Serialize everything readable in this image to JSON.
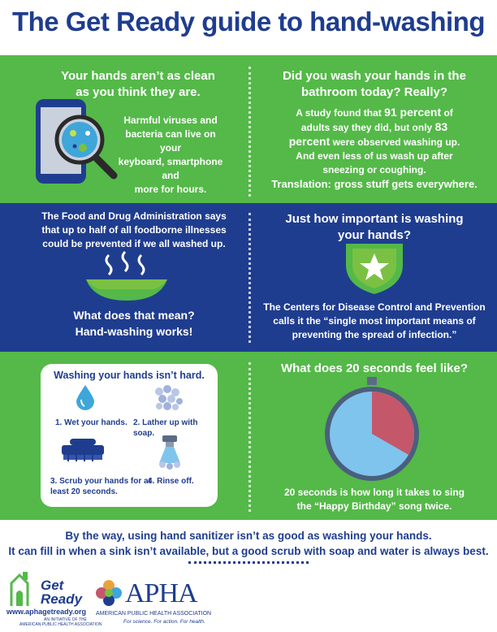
{
  "title": "The Get Ready guide to hand-washing",
  "colors": {
    "green": "#54b948",
    "navy": "#1f3d8f",
    "clock_red": "#c5576b",
    "clock_blue": "#7fc4ec"
  },
  "section1": {
    "heading_line1": "Your hands aren’t as clean",
    "heading_line2": "as you think they are.",
    "body_line1": "Harmful viruses and",
    "body_line2": "bacteria can live on your",
    "body_line3": "keyboard, smartphone and",
    "body_line4": "more for hours.",
    "icon": "phone-magnifier-germs-icon"
  },
  "section2": {
    "heading_line1": "Did you wash your hands in the",
    "heading_line2": "bathroom today? Really?",
    "body_line1_a": "A study found that ",
    "body_line1_b": "91 percent",
    "body_line1_c": " of",
    "body_line2_a": "adults say they did, but only ",
    "body_line2_b": "83",
    "body_line3_a": "percent",
    "body_line3_b": " were observed washing up.",
    "body_line4": "And even less of us wash up after",
    "body_line5": "sneezing or coughing.",
    "translation": "Translation: gross stuff gets everywhere."
  },
  "section3": {
    "body_line1": "The Food and Drug Administration says",
    "body_line2": "that up to half of all foodborne illnesses",
    "body_line3": "could be prevented if we all washed up.",
    "icon": "steaming-bowl-icon",
    "q_line1": "What does that mean?",
    "q_line2": "Hand-washing works!"
  },
  "section4": {
    "heading_line1": "Just how important is washing",
    "heading_line2": "your hands?",
    "icon": "shield-star-icon",
    "body_line1": "The Centers for Disease Control and Prevention",
    "body_line2": "calls it the “single most important means of",
    "body_line3": "preventing the spread of infection.”"
  },
  "steps": {
    "title": "Washing your hands isn’t hard.",
    "s1": "1. Wet your hands.",
    "s2": "2. Lather up with soap.",
    "s3_line1": "3. Scrub your hands for at",
    "s3_line2": "least 20 seconds.",
    "s4": "4. Rinse off.",
    "icons": [
      "water-drop-icon",
      "soap-bubbles-icon",
      "scrub-brush-icon",
      "faucet-icon"
    ]
  },
  "clock": {
    "heading": "What does 20 seconds feel like?",
    "seconds_fraction": 0.333,
    "caption_line1": "20 seconds is how long it takes to sing",
    "caption_line2": "the “Happy Birthday” song twice.",
    "icon": "stopwatch-icon"
  },
  "footer": {
    "line1": "By the way, using hand sanitizer isn’t as good as washing your hands.",
    "line2": "It can fill in when a sink isn’t available, but a good scrub with soap and water is always best."
  },
  "logos": {
    "get": "Get",
    "ready": "Ready",
    "url": "www.aphagetready.org",
    "tagline_line1": "AN INITIATIVE OF THE",
    "tagline_line2": "AMERICAN PUBLIC HEALTH ASSOCIATION",
    "apha": "APHA",
    "apha_full": "AMERICAN PUBLIC HEALTH ASSOCIATION",
    "apha_tagline": "For science. For action. For health."
  }
}
